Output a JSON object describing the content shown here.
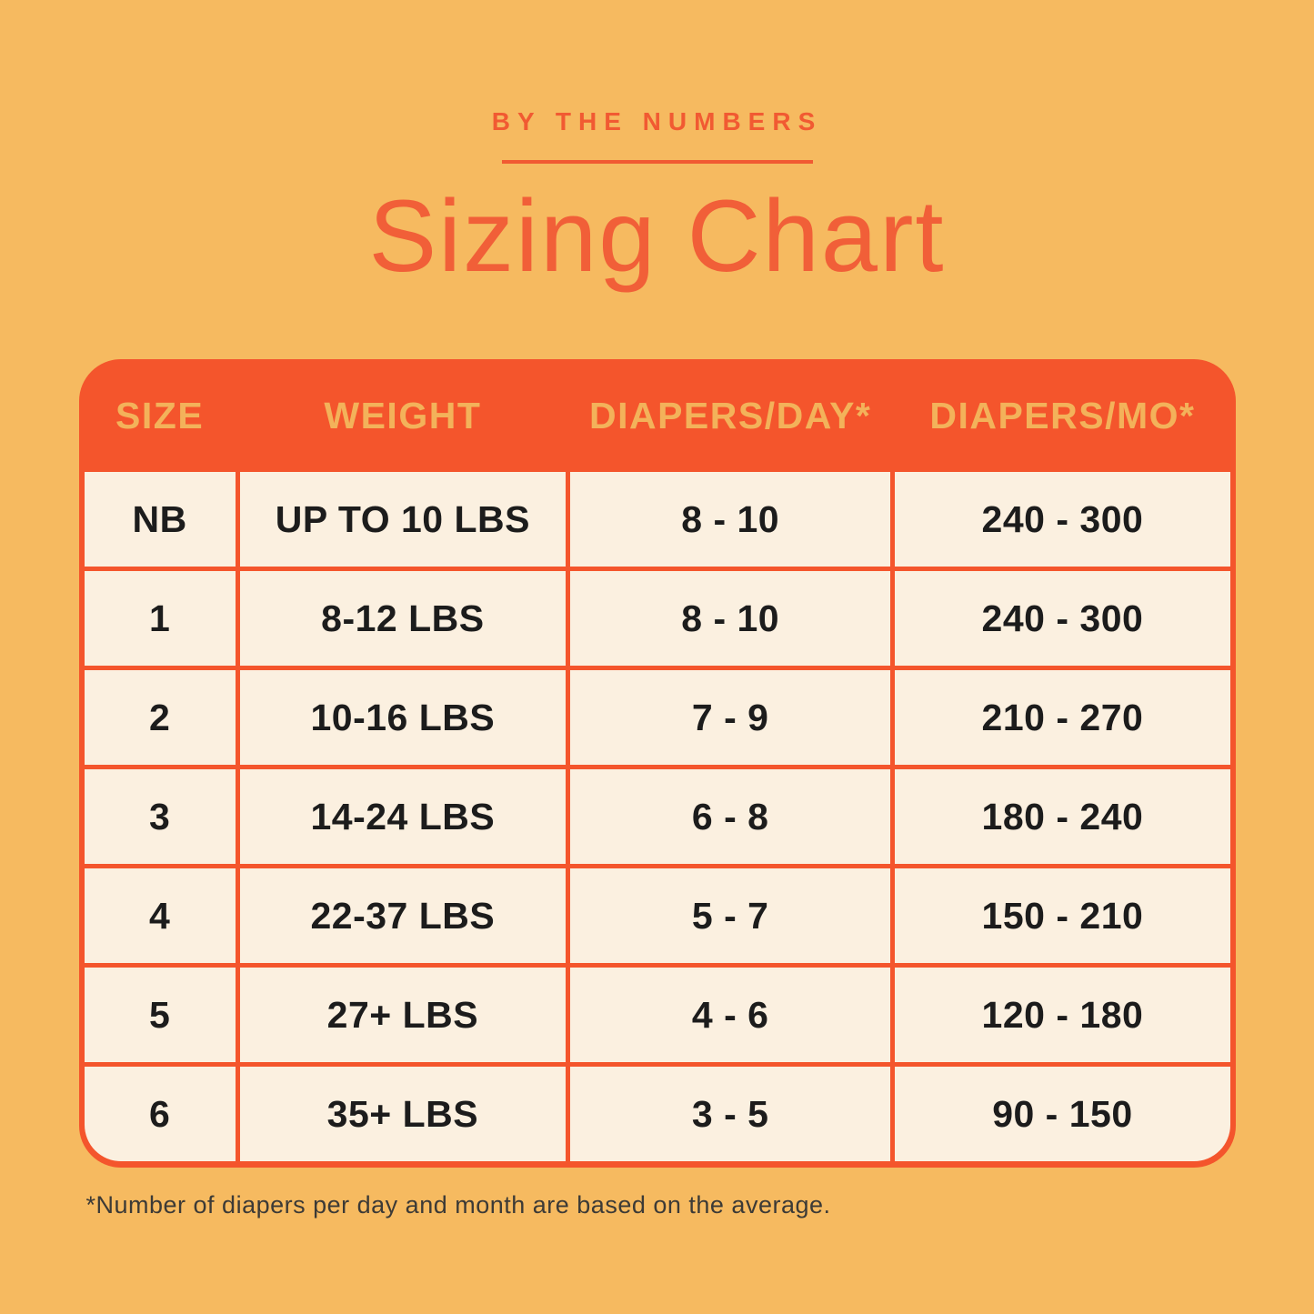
{
  "colors": {
    "background": "#f6ba60",
    "accent_red": "#f4552c",
    "title_red": "#f15f38",
    "cream": "#fbf0e0",
    "gold_header_text": "#f3b25a",
    "body_text": "#1c1c1c",
    "footnote_text": "#3c3a36"
  },
  "eyebrow": "BY THE NUMBERS",
  "title": "Sizing Chart",
  "table": {
    "headers": [
      "SIZE",
      "WEIGHT",
      "DIAPERS/DAY*",
      "DIAPERS/MO*"
    ],
    "rows": [
      {
        "size": "NB",
        "weight": "UP TO 10 LBS",
        "per_day": "8 - 10",
        "per_month": "240 - 300"
      },
      {
        "size": "1",
        "weight": "8-12 LBS",
        "per_day": "8 - 10",
        "per_month": "240 - 300"
      },
      {
        "size": "2",
        "weight": "10-16 LBS",
        "per_day": "7 - 9",
        "per_month": "210 - 270"
      },
      {
        "size": "3",
        "weight": "14-24 LBS",
        "per_day": "6 - 8",
        "per_month": "180 - 240"
      },
      {
        "size": "4",
        "weight": "22-37 LBS",
        "per_day": "5 - 7",
        "per_month": "150 - 210"
      },
      {
        "size": "5",
        "weight": "27+ LBS",
        "per_day": "4 - 6",
        "per_month": "120 - 180"
      },
      {
        "size": "6",
        "weight": "35+ LBS",
        "per_day": "3 - 5",
        "per_month": "90 - 150"
      }
    ]
  },
  "footnote": "*Number of diapers per day and month are based on the average.",
  "chart_data": {
    "type": "table",
    "title": "Sizing Chart",
    "subtitle": "BY THE NUMBERS",
    "columns": [
      "SIZE",
      "WEIGHT",
      "DIAPERS/DAY*",
      "DIAPERS/MO*"
    ],
    "rows": [
      [
        "NB",
        "UP TO 10 LBS",
        "8 - 10",
        "240 - 300"
      ],
      [
        "1",
        "8-12 LBS",
        "8 - 10",
        "240 - 300"
      ],
      [
        "2",
        "10-16 LBS",
        "7 - 9",
        "210 - 270"
      ],
      [
        "3",
        "14-24 LBS",
        "6 - 8",
        "180 - 240"
      ],
      [
        "4",
        "22-37 LBS",
        "5 - 7",
        "150 - 210"
      ],
      [
        "5",
        "27+ LBS",
        "4 - 6",
        "120 - 180"
      ],
      [
        "6",
        "35+ LBS",
        "3 - 5",
        "90 - 150"
      ]
    ],
    "footnote": "*Number of diapers per day and month are based on the average."
  }
}
